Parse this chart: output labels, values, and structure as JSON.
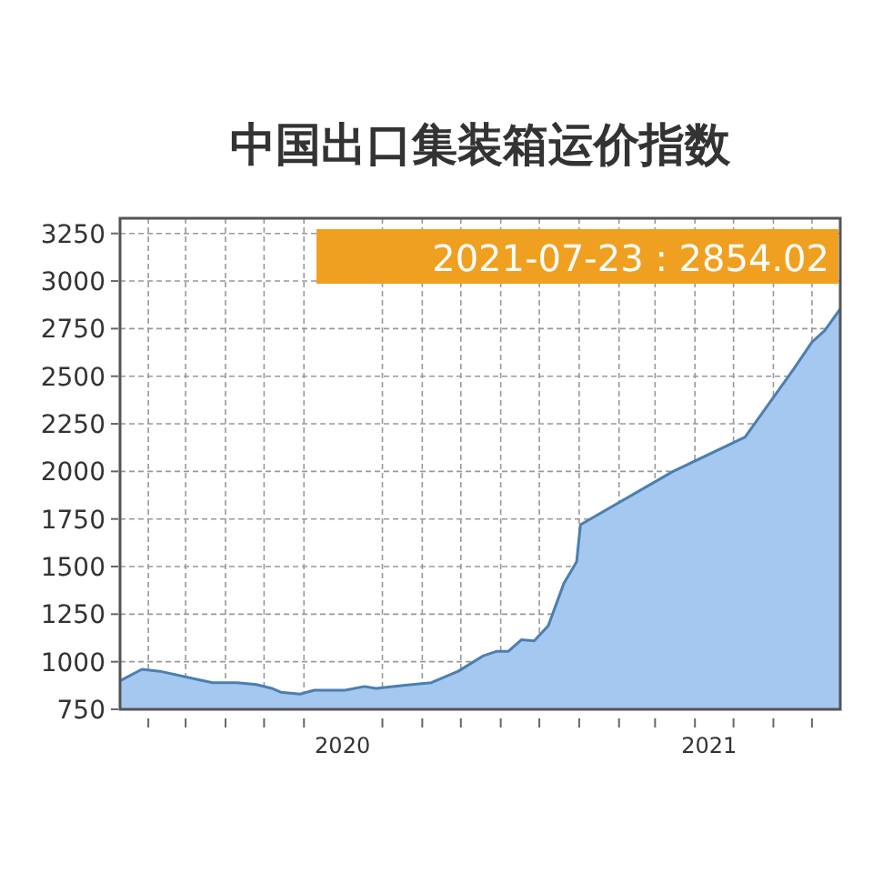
{
  "chart_data": {
    "type": "area",
    "title": "中国出口集装箱运价指数",
    "x": [
      "2020-01-10",
      "2020-01-27",
      "2020-02-10",
      "2020-03-08",
      "2020-03-22",
      "2020-04-10",
      "2020-04-25",
      "2020-05-07",
      "2020-05-14",
      "2020-05-29",
      "2020-06-09",
      "2020-07-03",
      "2020-07-18",
      "2020-07-27",
      "2020-08-17",
      "2020-09-08",
      "2020-09-29",
      "2020-10-18",
      "2020-10-29",
      "2020-11-07",
      "2020-11-17",
      "2020-11-27",
      "2020-12-08",
      "2020-12-20",
      "2020-12-30",
      "2021-01-02",
      "2021-03-15",
      "2021-05-10",
      "2021-06-17",
      "2021-07-01",
      "2021-07-11",
      "2021-07-23"
    ],
    "series": [
      {
        "color": "#a4c8f0",
        "values": [
          900,
          960,
          950,
          910,
          890,
          890,
          880,
          860,
          840,
          830,
          850,
          850,
          870,
          860,
          875,
          890,
          950,
          1030,
          1055,
          1055,
          1115,
          1110,
          1190,
          1410,
          1525,
          1720,
          2000,
          2180,
          2540,
          2680,
          2740,
          2854.02
        ]
      }
    ],
    "xlim": [
      "2020-01-10",
      "2021-07-23"
    ],
    "xticks": [
      {
        "value": "2020-02-01",
        "label": null
      },
      {
        "value": "2020-03-01",
        "label": null
      },
      {
        "value": "2020-04-01",
        "label": null
      },
      {
        "value": "2020-05-01",
        "label": null
      },
      {
        "value": "2020-06-01",
        "label": null
      },
      {
        "value": "2020-07-01",
        "label": "2020"
      },
      {
        "value": "2020-08-01",
        "label": null
      },
      {
        "value": "2020-09-01",
        "label": null
      },
      {
        "value": "2020-10-01",
        "label": null
      },
      {
        "value": "2020-11-01",
        "label": null
      },
      {
        "value": "2020-12-01",
        "label": null
      },
      {
        "value": "2021-01-01",
        "label": null
      },
      {
        "value": "2021-02-01",
        "label": null
      },
      {
        "value": "2021-03-01",
        "label": null
      },
      {
        "value": "2021-04-01",
        "label": null
      },
      {
        "value": "2021-04-12",
        "label": "2021"
      },
      {
        "value": "2021-05-01",
        "label": null
      },
      {
        "value": "2021-06-01",
        "label": null
      },
      {
        "value": "2021-07-01",
        "label": null
      }
    ],
    "ylim": [
      750,
      3330
    ],
    "yticks": [
      750,
      1000,
      1250,
      1500,
      1750,
      2000,
      2250,
      2500,
      2750,
      3000,
      3250
    ],
    "grid": true,
    "annotations": [
      "2021-07-23 : 2854.02"
    ]
  }
}
